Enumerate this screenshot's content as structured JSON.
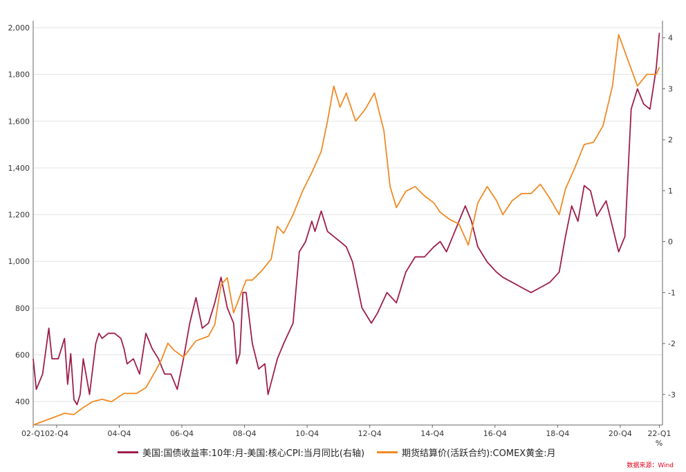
{
  "chart_data": {
    "type": "line",
    "left_axis": {
      "range": [
        300,
        2000
      ],
      "ticks": [
        "400",
        "600",
        "800",
        "1,000",
        "1,200",
        "1,400",
        "1,600",
        "1,800",
        "2,000"
      ],
      "tick_values": [
        400,
        600,
        800,
        1000,
        1200,
        1400,
        1600,
        1800,
        2000
      ]
    },
    "right_axis": {
      "range": [
        -3.6,
        4.2
      ],
      "ticks": [
        "-3",
        "-2",
        "-1",
        "0",
        "1",
        "2",
        "3",
        "4"
      ],
      "tick_values": [
        -3,
        -2,
        -1,
        0,
        1,
        2,
        3,
        4
      ],
      "unit": "%"
    },
    "x_ticks": [
      "02-Q1",
      "02-Q4",
      "04-Q4",
      "06-Q4",
      "08-Q4",
      "10-Q4",
      "12-Q4",
      "14-Q4",
      "16-Q4",
      "18-Q4",
      "20-Q4",
      "22-Q1"
    ],
    "x_tick_values": [
      2002.0,
      2002.75,
      2004.75,
      2006.75,
      2008.75,
      2010.75,
      2012.75,
      2014.75,
      2016.75,
      2018.75,
      2020.75,
      2022.0
    ],
    "x_range": [
      2002.0,
      2022.1
    ],
    "grid": true,
    "legend_position": "bottom",
    "series": [
      {
        "name": "美国:国债收益率:10年:月-美国:核心CPI:当月同比(右轴)",
        "axis": "right",
        "color": "#9e1d4a",
        "x": [
          2002.0,
          2002.1,
          2002.3,
          2002.5,
          2002.6,
          2002.8,
          2003.0,
          2003.1,
          2003.2,
          2003.3,
          2003.4,
          2003.5,
          2003.6,
          2003.8,
          2004.0,
          2004.1,
          2004.2,
          2004.4,
          2004.6,
          2004.8,
          2004.9,
          2005.0,
          2005.2,
          2005.4,
          2005.6,
          2005.8,
          2006.0,
          2006.2,
          2006.4,
          2006.6,
          2006.8,
          2007.0,
          2007.2,
          2007.4,
          2007.6,
          2007.8,
          2008.0,
          2008.2,
          2008.4,
          2008.5,
          2008.6,
          2008.7,
          2008.8,
          2009.0,
          2009.2,
          2009.4,
          2009.5,
          2009.8,
          2010.0,
          2010.3,
          2010.5,
          2010.7,
          2010.9,
          2011.0,
          2011.2,
          2011.4,
          2011.6,
          2011.8,
          2012.0,
          2012.2,
          2012.5,
          2012.8,
          2013.0,
          2013.3,
          2013.6,
          2013.9,
          2014.2,
          2014.5,
          2014.8,
          2015.0,
          2015.2,
          2015.4,
          2015.6,
          2015.8,
          2016.0,
          2016.2,
          2016.5,
          2016.8,
          2017.0,
          2017.3,
          2017.6,
          2017.9,
          2018.2,
          2018.5,
          2018.8,
          2019.0,
          2019.2,
          2019.4,
          2019.6,
          2019.8,
          2020.0,
          2020.3,
          2020.5,
          2020.7,
          2020.9,
          2021.1,
          2021.3,
          2021.5,
          2021.7,
          2021.9,
          2022.0
        ],
        "values": [
          -2.3,
          -2.9,
          -2.6,
          -1.7,
          -2.3,
          -2.3,
          -1.9,
          -2.8,
          -2.2,
          -3.1,
          -3.2,
          -3.0,
          -2.3,
          -3.0,
          -2.0,
          -1.8,
          -1.9,
          -1.8,
          -1.8,
          -1.9,
          -2.1,
          -2.4,
          -2.3,
          -2.6,
          -1.8,
          -2.1,
          -2.3,
          -2.6,
          -2.6,
          -2.9,
          -2.3,
          -1.6,
          -1.1,
          -1.7,
          -1.6,
          -1.2,
          -0.7,
          -1.3,
          -1.6,
          -2.4,
          -2.2,
          -1.0,
          -1.0,
          -2.0,
          -2.5,
          -2.4,
          -3.0,
          -2.3,
          -2.0,
          -1.6,
          -0.2,
          0.0,
          0.4,
          0.2,
          0.6,
          0.2,
          0.1,
          0.0,
          -0.1,
          -0.4,
          -1.3,
          -1.6,
          -1.4,
          -1.0,
          -1.2,
          -0.6,
          -0.3,
          -0.3,
          -0.1,
          0.0,
          -0.2,
          0.1,
          0.4,
          0.7,
          0.4,
          -0.1,
          -0.4,
          -0.6,
          -0.7,
          -0.8,
          -0.9,
          -1.0,
          -0.9,
          -0.8,
          -0.6,
          0.1,
          0.7,
          0.4,
          1.1,
          1.0,
          0.5,
          0.8,
          0.3,
          -0.2,
          0.1,
          2.6,
          3.0,
          2.7,
          2.6,
          3.4,
          4.1
        ]
      },
      {
        "name": "期货结算价(活跃合约):COMEX黄金:月",
        "axis": "left",
        "color": "#f08a24",
        "x": [
          2002.0,
          2002.3,
          2002.6,
          2003.0,
          2003.3,
          2003.6,
          2003.9,
          2004.2,
          2004.5,
          2004.9,
          2005.3,
          2005.6,
          2005.9,
          2006.1,
          2006.3,
          2006.5,
          2006.8,
          2007.2,
          2007.6,
          2007.8,
          2008.0,
          2008.2,
          2008.4,
          2008.6,
          2008.8,
          2009.0,
          2009.3,
          2009.6,
          2009.8,
          2010.0,
          2010.3,
          2010.6,
          2010.9,
          2011.2,
          2011.4,
          2011.6,
          2011.8,
          2012.0,
          2012.3,
          2012.6,
          2012.9,
          2013.2,
          2013.4,
          2013.6,
          2013.9,
          2014.2,
          2014.5,
          2014.8,
          2015.0,
          2015.3,
          2015.6,
          2015.9,
          2016.2,
          2016.5,
          2016.8,
          2017.0,
          2017.3,
          2017.6,
          2017.9,
          2018.2,
          2018.5,
          2018.8,
          2019.0,
          2019.3,
          2019.6,
          2019.9,
          2020.2,
          2020.5,
          2020.7,
          2021.0,
          2021.3,
          2021.6,
          2021.9,
          2022.0
        ],
        "values": [
          300,
          315,
          330,
          350,
          345,
          375,
          400,
          410,
          400,
          435,
          435,
          460,
          530,
          580,
          650,
          620,
          590,
          660,
          680,
          730,
          900,
          930,
          780,
          850,
          920,
          920,
          960,
          1010,
          1150,
          1120,
          1200,
          1300,
          1380,
          1470,
          1600,
          1750,
          1660,
          1720,
          1600,
          1650,
          1720,
          1560,
          1320,
          1230,
          1300,
          1320,
          1280,
          1250,
          1210,
          1180,
          1160,
          1070,
          1250,
          1320,
          1260,
          1200,
          1260,
          1290,
          1290,
          1330,
          1270,
          1200,
          1310,
          1400,
          1500,
          1510,
          1580,
          1750,
          1970,
          1860,
          1750,
          1800,
          1800,
          1830
        ]
      }
    ]
  },
  "axis_unit_label": "%",
  "legend": {
    "item1": "美国:国债收益率:10年:月-美国:核心CPI:当月同比(右轴)",
    "item2": "期货结算价(活跃合约):COMEX黄金:月"
  },
  "source": "数据来源：Wind"
}
